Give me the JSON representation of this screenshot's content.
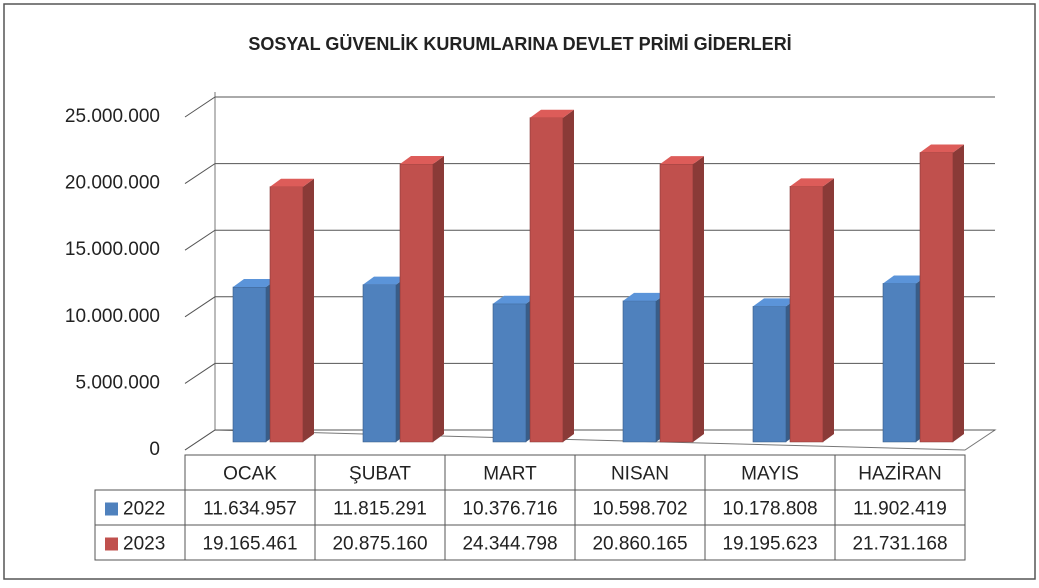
{
  "chart_data": {
    "type": "bar3d",
    "title": "SOSYAL GÜVENLİK KURUMLARINA DEVLET PRİMİ GİDERLERİ",
    "categories": [
      "OCAK",
      "ŞUBAT",
      "MART",
      "NISAN",
      "MAYIS",
      "HAZİRAN"
    ],
    "series": [
      {
        "name": "2022",
        "color": "#4f81bd",
        "values": [
          11634957,
          11815291,
          10376716,
          10598702,
          10178808,
          11902419
        ],
        "value_labels": [
          "11.634.957",
          "11.815.291",
          "10.376.716",
          "10.598.702",
          "10.178.808",
          "11.902.419"
        ]
      },
      {
        "name": "2023",
        "color": "#c0504d",
        "values": [
          19165461,
          20875160,
          24344798,
          20860165,
          19195623,
          21731168
        ],
        "value_labels": [
          "19.165.461",
          "20.875.160",
          "24.344.798",
          "20.860.165",
          "19.195.623",
          "21.731.168"
        ]
      }
    ],
    "ylim": [
      0,
      25000000
    ],
    "yticks": [
      0,
      {
        "value": 5000000,
        "label": "5.000.000"
      },
      {
        "value": 10000000,
        "label": "10.000.000"
      },
      {
        "value": 15000000,
        "label": "15.000.000"
      },
      {
        "value": 20000000,
        "label": "20.000.000"
      },
      {
        "value": 25000000,
        "label": "25.000.000"
      }
    ],
    "grid": true
  }
}
